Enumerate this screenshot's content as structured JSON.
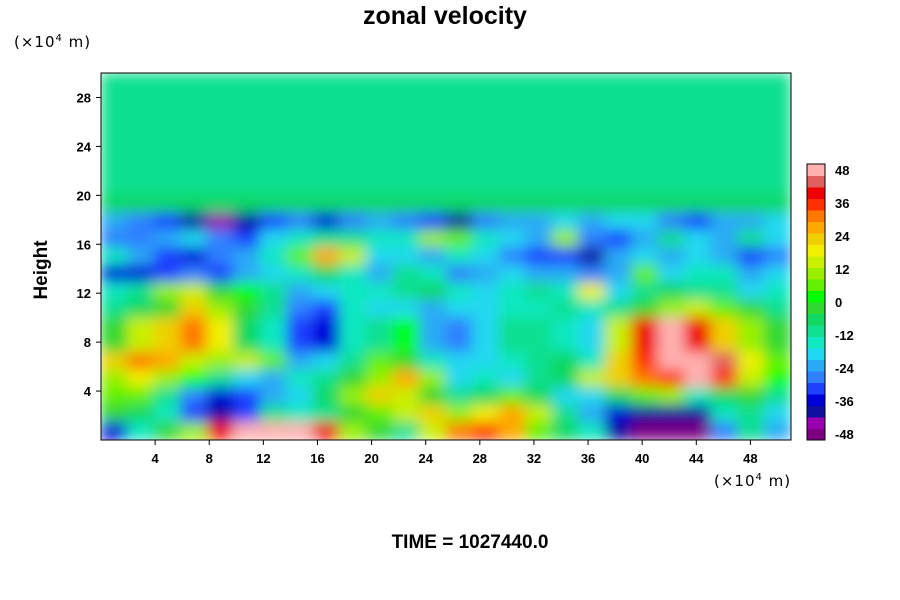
{
  "chart_data": {
    "type": "heatmap",
    "title": "zonal velocity",
    "ylabel": "Height",
    "xlabel": "",
    "x_unit_prefix": "(×10",
    "x_unit_exp": "4",
    "x_unit_suffix": " m)",
    "y_unit_prefix": "(×10",
    "y_unit_exp": "4",
    "y_unit_suffix": " m)",
    "footer": "TIME = 1027440.0",
    "xlim": [
      0,
      51
    ],
    "ylim": [
      0,
      30
    ],
    "x_ticks": [
      4,
      8,
      12,
      16,
      20,
      24,
      28,
      32,
      36,
      40,
      44,
      48
    ],
    "y_ticks": [
      4,
      8,
      12,
      16,
      20,
      24,
      28
    ],
    "colorbar": {
      "ticks": [
        48,
        36,
        24,
        12,
        0,
        -12,
        -24,
        -36,
        -48
      ],
      "range": [
        -48,
        48
      ],
      "colors": [
        "#7a0080",
        "#9a00b0",
        "#1010a0",
        "#0000d8",
        "#1e40ff",
        "#2e80ff",
        "#2aaaf5",
        "#20d8f0",
        "#10e8c0",
        "#10e090",
        "#10d860",
        "#30d830",
        "#00ff00",
        "#60f000",
        "#98f000",
        "#c8f000",
        "#f0f000",
        "#f0d000",
        "#ffa800",
        "#ff7800",
        "#ff3000",
        "#f00000",
        "#e06060",
        "#ffb0b0"
      ]
    },
    "value_field": [
      [
        -12,
        -12,
        -12,
        -12,
        -12,
        -12,
        -12,
        -12,
        -12,
        -12,
        -12,
        -12,
        -12,
        -12,
        -12,
        -12,
        -12,
        -12,
        -12,
        -12,
        -12,
        -12,
        -12,
        -12,
        -12,
        -12
      ],
      [
        -12,
        -12,
        -12,
        -12,
        -12,
        -12,
        -12,
        -12,
        -12,
        -12,
        -12,
        -12,
        -12,
        -12,
        -12,
        -12,
        -12,
        -12,
        -12,
        -12,
        -12,
        -12,
        -12,
        -12,
        -12,
        -12
      ],
      [
        -12,
        -12,
        -12,
        -12,
        -12,
        -12,
        -12,
        -12,
        -12,
        -12,
        -12,
        -12,
        -12,
        -12,
        -12,
        -12,
        -12,
        -12,
        -12,
        -12,
        -12,
        -12,
        -12,
        -12,
        -12,
        -12
      ],
      [
        -12,
        -12,
        -12,
        -12,
        -12,
        -12,
        -12,
        -12,
        -12,
        -12,
        -12,
        -12,
        -12,
        -12,
        -12,
        -12,
        -12,
        -12,
        -12,
        -12,
        -12,
        -12,
        -12,
        -12,
        -12,
        -12
      ],
      [
        -12,
        -12,
        -12,
        -12,
        -12,
        -12,
        -12,
        -12,
        -12,
        -12,
        -12,
        -12,
        -12,
        -12,
        -12,
        -12,
        -12,
        -12,
        -12,
        -12,
        -12,
        -12,
        -12,
        -12,
        -12,
        -12
      ],
      [
        -12,
        -12,
        -12,
        -12,
        -12,
        -12,
        -12,
        -12,
        -12,
        -12,
        -12,
        -12,
        -12,
        -12,
        -12,
        -12,
        -12,
        -12,
        -12,
        -12,
        -12,
        -12,
        -12,
        -12,
        -12,
        -12
      ],
      [
        -12,
        -12,
        -12,
        -10,
        -10,
        -10,
        -12,
        -12,
        -12,
        -12,
        -12,
        -12,
        -12,
        -12,
        -12,
        -12,
        -12,
        -12,
        -12,
        -12,
        -12,
        -12,
        -12,
        -12,
        -12,
        -12
      ],
      [
        -6,
        -6,
        -6,
        -6,
        -6,
        -6,
        -6,
        -6,
        -6,
        -6,
        -6,
        -6,
        -6,
        -6,
        -6,
        -6,
        -6,
        -6,
        -6,
        -6,
        -6,
        -6,
        -6,
        -6,
        -6,
        -6
      ],
      [
        -22,
        -26,
        -32,
        -40,
        -44,
        -38,
        -30,
        -28,
        -36,
        -26,
        -24,
        -28,
        -32,
        -38,
        -26,
        -22,
        -24,
        -20,
        -22,
        -20,
        -18,
        -26,
        -30,
        -22,
        -24,
        -18
      ],
      [
        -28,
        -26,
        -24,
        -20,
        -28,
        -30,
        -18,
        -14,
        -12,
        -10,
        -16,
        -14,
        10,
        4,
        -16,
        -18,
        -22,
        8,
        -26,
        -30,
        -24,
        -10,
        -20,
        -22,
        -12,
        -18
      ],
      [
        -16,
        -24,
        -30,
        -34,
        -28,
        -22,
        -16,
        6,
        24,
        14,
        -18,
        -20,
        -24,
        -14,
        -20,
        -26,
        -32,
        -30,
        -40,
        -24,
        -20,
        -22,
        -18,
        -24,
        -30,
        -26
      ],
      [
        -36,
        -34,
        -30,
        -28,
        -32,
        -24,
        -20,
        -14,
        -8,
        -16,
        -22,
        -10,
        -16,
        -26,
        -22,
        -20,
        -22,
        -24,
        -26,
        -22,
        6,
        -20,
        -14,
        -16,
        -22,
        -20
      ],
      [
        -14,
        -12,
        10,
        12,
        -4,
        2,
        -10,
        -22,
        -20,
        -16,
        -14,
        -10,
        -8,
        -16,
        -20,
        -14,
        -10,
        -16,
        18,
        -18,
        -12,
        -8,
        -10,
        -12,
        -18,
        -14
      ],
      [
        -10,
        -8,
        -4,
        20,
        8,
        -2,
        -12,
        -26,
        -30,
        -16,
        -20,
        -18,
        -24,
        -18,
        -20,
        -16,
        -14,
        -12,
        -16,
        -10,
        -4,
        8,
        14,
        4,
        -4,
        -10
      ],
      [
        -2,
        12,
        20,
        30,
        16,
        -8,
        -16,
        -30,
        -34,
        -14,
        -10,
        2,
        -22,
        -26,
        -20,
        -10,
        -12,
        -14,
        -20,
        12,
        36,
        46,
        36,
        20,
        8,
        -4
      ],
      [
        -2,
        12,
        20,
        30,
        16,
        -8,
        -16,
        -30,
        -34,
        -14,
        -10,
        2,
        -22,
        -26,
        -20,
        -10,
        -12,
        -14,
        -20,
        12,
        36,
        46,
        36,
        20,
        8,
        -4
      ],
      [
        22,
        28,
        24,
        14,
        10,
        12,
        4,
        -22,
        -20,
        -12,
        4,
        -4,
        -14,
        -18,
        -20,
        -14,
        -10,
        -8,
        -14,
        20,
        34,
        48,
        48,
        40,
        18,
        6
      ],
      [
        10,
        16,
        10,
        0,
        -10,
        -20,
        -22,
        -14,
        -12,
        -4,
        10,
        24,
        8,
        -18,
        -16,
        -18,
        -12,
        -6,
        12,
        22,
        30,
        34,
        46,
        32,
        14,
        0
      ],
      [
        4,
        6,
        -10,
        -28,
        -34,
        -30,
        -22,
        -18,
        -8,
        8,
        22,
        12,
        -4,
        -12,
        -6,
        4,
        -6,
        -20,
        -20,
        -8,
        4,
        8,
        -14,
        -8,
        -4,
        -10
      ],
      [
        -4,
        -8,
        -16,
        -30,
        -38,
        -30,
        -10,
        -14,
        -10,
        -2,
        6,
        14,
        20,
        10,
        16,
        24,
        12,
        -12,
        -24,
        -36,
        -40,
        -40,
        -38,
        -16,
        -10,
        -20
      ],
      [
        -34,
        -16,
        -4,
        10,
        36,
        48,
        48,
        48,
        36,
        10,
        -4,
        -10,
        14,
        28,
        32,
        26,
        6,
        -6,
        -14,
        -40,
        -50,
        -54,
        -48,
        -28,
        -12,
        -22
      ]
    ]
  }
}
